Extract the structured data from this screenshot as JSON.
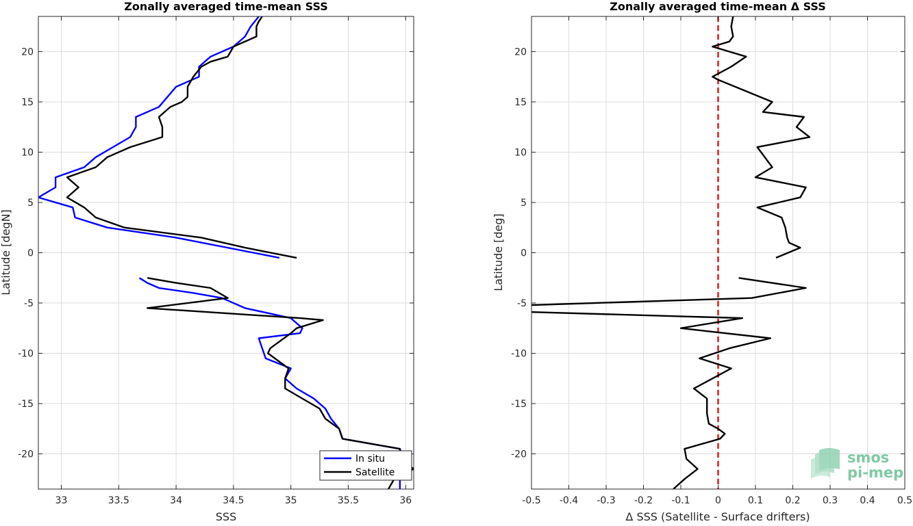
{
  "watermark": {
    "line1": "smos",
    "line2": "pi-mep"
  },
  "chart_data": [
    {
      "type": "line",
      "title": "Zonally averaged time-mean SSS",
      "xlabel": "SSS",
      "ylabel": "Latitude [degN]",
      "xlim": [
        32.8,
        36.07
      ],
      "ylim": [
        -23.5,
        23.5
      ],
      "xticks": [
        33,
        33.5,
        34,
        34.5,
        35,
        35.5,
        36
      ],
      "xtick_labels": [
        "33",
        "33.5",
        "34",
        "34.5",
        "35",
        "35.5",
        "36"
      ],
      "yticks": [
        -20,
        -15,
        -10,
        -5,
        0,
        5,
        10,
        15,
        20
      ],
      "ytick_labels": [
        "-20",
        "-15",
        "-10",
        "-5",
        "0",
        "5",
        "10",
        "15",
        "20"
      ],
      "grid": true,
      "legend": "bottom-right",
      "series": [
        {
          "name": "In situ",
          "color": "#0000ff",
          "segments": [
            [
              [
                34.72,
                23.5
              ],
              [
                34.7,
                23.2
              ],
              [
                34.65,
                22.5
              ],
              [
                34.6,
                21.5
              ],
              [
                34.5,
                20.5
              ],
              [
                34.3,
                19.5
              ],
              [
                34.2,
                18.5
              ],
              [
                34.2,
                17.5
              ],
              [
                34.0,
                16.5
              ],
              [
                33.85,
                14.5
              ],
              [
                33.65,
                13.5
              ],
              [
                33.65,
                12.5
              ],
              [
                33.6,
                11.5
              ],
              [
                33.45,
                10.5
              ],
              [
                33.3,
                9.5
              ],
              [
                33.2,
                8.5
              ],
              [
                32.95,
                7.5
              ],
              [
                32.95,
                6.5
              ],
              [
                32.8,
                5.5
              ],
              [
                33.1,
                4.5
              ],
              [
                33.12,
                3.5
              ],
              [
                33.4,
                2.5
              ],
              [
                34.0,
                1.5
              ],
              [
                34.9,
                -0.5
              ]
            ],
            [
              [
                33.68,
                -2.5
              ],
              [
                33.75,
                -3.0
              ],
              [
                33.85,
                -3.5
              ],
              [
                34.15,
                -4.0
              ],
              [
                34.4,
                -4.5
              ],
              [
                34.6,
                -5.5
              ],
              [
                35.0,
                -6.5
              ],
              [
                35.1,
                -7.5
              ],
              [
                35.08,
                -8.0
              ],
              [
                34.72,
                -8.5
              ],
              [
                34.78,
                -10.5
              ],
              [
                35.0,
                -11.5
              ],
              [
                34.95,
                -12.5
              ],
              [
                35.05,
                -13.5
              ],
              [
                35.2,
                -14.5
              ],
              [
                35.3,
                -15.5
              ],
              [
                35.35,
                -16.5
              ],
              [
                35.42,
                -17.5
              ],
              [
                35.45,
                -18.5
              ],
              [
                35.95,
                -19.5
              ],
              [
                35.98,
                -20.5
              ],
              [
                36.05,
                -21.5
              ],
              [
                35.95,
                -22.5
              ],
              [
                35.95,
                -23.5
              ]
            ]
          ]
        },
        {
          "name": "Satellite",
          "color": "#000000",
          "segments": [
            [
              [
                34.75,
                23.5
              ],
              [
                34.72,
                23.0
              ],
              [
                34.7,
                22.5
              ],
              [
                34.7,
                21.5
              ],
              [
                34.5,
                20.5
              ],
              [
                34.45,
                19.5
              ],
              [
                34.3,
                19.0
              ],
              [
                34.22,
                18.5
              ],
              [
                34.15,
                17.5
              ],
              [
                34.1,
                16.5
              ],
              [
                34.1,
                15.5
              ],
              [
                34.05,
                15.0
              ],
              [
                33.95,
                14.5
              ],
              [
                33.85,
                13.5
              ],
              [
                33.88,
                12.5
              ],
              [
                33.88,
                11.5
              ],
              [
                33.6,
                10.5
              ],
              [
                33.4,
                9.5
              ],
              [
                33.3,
                8.5
              ],
              [
                33.05,
                7.5
              ],
              [
                33.15,
                6.5
              ],
              [
                33.05,
                5.5
              ],
              [
                33.2,
                4.5
              ],
              [
                33.3,
                3.5
              ],
              [
                33.55,
                2.5
              ],
              [
                34.22,
                1.5
              ],
              [
                34.6,
                0.5
              ],
              [
                35.05,
                -0.5
              ]
            ],
            [
              [
                33.75,
                -2.5
              ],
              [
                34.0,
                -3.0
              ],
              [
                34.3,
                -3.5
              ],
              [
                34.45,
                -4.5
              ],
              [
                33.75,
                -5.5
              ],
              [
                35.08,
                -6.5
              ],
              [
                35.28,
                -6.7
              ],
              [
                35.05,
                -7.5
              ],
              [
                35.0,
                -8.0
              ],
              [
                34.88,
                -9.0
              ],
              [
                34.82,
                -9.5
              ],
              [
                34.8,
                -10.0
              ],
              [
                34.98,
                -11.5
              ],
              [
                34.95,
                -12.5
              ],
              [
                34.95,
                -13.5
              ],
              [
                35.25,
                -15.5
              ],
              [
                35.3,
                -16.5
              ],
              [
                35.42,
                -17.5
              ],
              [
                35.45,
                -18.5
              ],
              [
                35.95,
                -19.5
              ],
              [
                35.95,
                -20.5
              ],
              [
                36.07,
                -21.5
              ],
              [
                35.9,
                -22.5
              ],
              [
                35.85,
                -23.5
              ]
            ]
          ]
        }
      ]
    },
    {
      "type": "line",
      "title": "Zonally averaged time-mean Δ SSS",
      "xlabel": "Δ SSS (Satellite - Surface drifters)",
      "ylabel": "Latitude [deg]",
      "xlim": [
        -0.5,
        0.5
      ],
      "ylim": [
        -23.5,
        23.5
      ],
      "xticks": [
        -0.5,
        -0.4,
        -0.3,
        -0.2,
        -0.1,
        0,
        0.1,
        0.2,
        0.3,
        0.4,
        0.5
      ],
      "xtick_labels": [
        "-0.5",
        "-0.4",
        "-0.3",
        "-0.2",
        "-0.1",
        "0",
        "0.1",
        "0.2",
        "0.3",
        "0.4",
        "0.5"
      ],
      "yticks": [
        -20,
        -15,
        -10,
        -5,
        0,
        5,
        10,
        15,
        20
      ],
      "ytick_labels": [
        "-20",
        "-15",
        "-10",
        "-5",
        "0",
        "5",
        "10",
        "15",
        "20"
      ],
      "grid": true,
      "reference_line": {
        "x": 0,
        "color": "#dd1c1a",
        "style": "dashed"
      },
      "series": [
        {
          "color": "#000000",
          "segments": [
            [
              [
                0.04,
                23.5
              ],
              [
                0.035,
                22.5
              ],
              [
                0.04,
                21.5
              ],
              [
                0.03,
                21.0
              ],
              [
                -0.015,
                20.5
              ],
              [
                0.075,
                19.5
              ],
              [
                0.035,
                18.5
              ],
              [
                -0.015,
                17.5
              ],
              [
                0.0,
                17.2
              ],
              [
                0.145,
                15.0
              ],
              [
                0.12,
                14.0
              ],
              [
                0.23,
                13.5
              ],
              [
                0.21,
                12.5
              ],
              [
                0.245,
                11.5
              ],
              [
                0.105,
                10.5
              ],
              [
                0.145,
                8.5
              ],
              [
                0.1,
                7.5
              ],
              [
                0.235,
                6.5
              ],
              [
                0.22,
                5.5
              ],
              [
                0.105,
                4.5
              ],
              [
                0.17,
                3.5
              ],
              [
                0.18,
                2.5
              ],
              [
                0.185,
                1.5
              ],
              [
                0.19,
                1.0
              ],
              [
                0.22,
                0.5
              ],
              [
                0.155,
                -0.5
              ]
            ],
            [
              [
                0.055,
                -2.5
              ],
              [
                0.235,
                -3.5
              ],
              [
                0.09,
                -4.5
              ],
              [
                -0.5,
                -5.2
              ]
            ],
            [
              [
                -0.5,
                -5.9
              ],
              [
                0.065,
                -6.5
              ],
              [
                -0.1,
                -7.5
              ],
              [
                0.14,
                -8.5
              ],
              [
                0.03,
                -9.5
              ],
              [
                -0.05,
                -10.5
              ],
              [
                0.035,
                -11.5
              ],
              [
                -0.015,
                -12.5
              ],
              [
                -0.065,
                -13.5
              ],
              [
                -0.03,
                -14.5
              ],
              [
                -0.03,
                -16.0
              ],
              [
                -0.025,
                -17.0
              ],
              [
                0.0,
                -17.5
              ],
              [
                0.018,
                -18.0
              ],
              [
                0.005,
                -18.5
              ],
              [
                -0.09,
                -19.5
              ],
              [
                -0.085,
                -20.5
              ],
              [
                -0.055,
                -21.5
              ],
              [
                -0.09,
                -22.5
              ],
              [
                -0.12,
                -23.5
              ]
            ]
          ]
        }
      ]
    }
  ]
}
